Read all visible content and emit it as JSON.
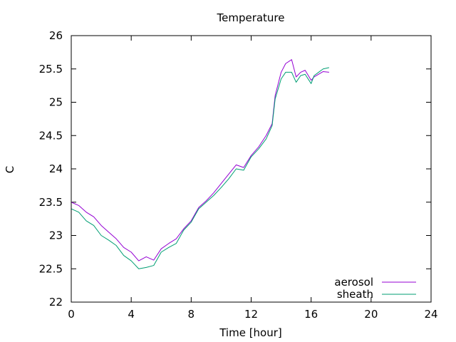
{
  "chart_data": {
    "type": "line",
    "title": "Temperature",
    "xlabel": "Time [hour]",
    "ylabel": "C",
    "xlim": [
      0,
      24
    ],
    "ylim": [
      22,
      26
    ],
    "xticks": [
      "0",
      "4",
      "8",
      "12",
      "16",
      "20",
      "24"
    ],
    "yticks": [
      "22",
      "22.5",
      "23",
      "23.5",
      "24",
      "24.5",
      "25",
      "25.5",
      "26"
    ],
    "grid": false,
    "legend_position": "bottom-right",
    "series": [
      {
        "name": "aerosol",
        "color": "#9400d3",
        "x": [
          0,
          0.5,
          1,
          1.5,
          2,
          2.5,
          3,
          3.5,
          4,
          4.5,
          5,
          5.5,
          6,
          6.5,
          7,
          7.5,
          8,
          8.5,
          9,
          9.5,
          10,
          10.5,
          11,
          11.5,
          12,
          12.5,
          13,
          13.4,
          13.6,
          14,
          14.3,
          14.7,
          15,
          15.3,
          15.6,
          16,
          16.2,
          16.5,
          16.8,
          17.2
        ],
        "y": [
          23.5,
          23.45,
          23.35,
          23.28,
          23.15,
          23.05,
          22.95,
          22.82,
          22.75,
          22.62,
          22.68,
          22.63,
          22.8,
          22.88,
          22.95,
          23.1,
          23.22,
          23.42,
          23.52,
          23.64,
          23.78,
          23.92,
          24.06,
          24.02,
          24.2,
          24.33,
          24.5,
          24.68,
          25.1,
          25.45,
          25.58,
          25.64,
          25.38,
          25.45,
          25.48,
          25.33,
          25.38,
          25.42,
          25.46,
          25.45
        ]
      },
      {
        "name": "sheath",
        "color": "#009e73",
        "x": [
          0,
          0.5,
          1,
          1.5,
          2,
          2.5,
          3,
          3.5,
          4,
          4.5,
          5,
          5.5,
          6,
          6.5,
          7,
          7.5,
          8,
          8.5,
          9,
          9.5,
          10,
          10.5,
          11,
          11.5,
          12,
          12.5,
          13,
          13.4,
          13.6,
          14,
          14.3,
          14.7,
          15,
          15.3,
          15.6,
          16,
          16.2,
          16.5,
          16.8,
          17.2
        ],
        "y": [
          23.4,
          23.35,
          23.22,
          23.15,
          23.0,
          22.93,
          22.85,
          22.7,
          22.62,
          22.5,
          22.52,
          22.55,
          22.75,
          22.82,
          22.88,
          23.08,
          23.2,
          23.4,
          23.5,
          23.6,
          23.72,
          23.85,
          24.0,
          23.98,
          24.18,
          24.3,
          24.45,
          24.65,
          25.05,
          25.35,
          25.45,
          25.45,
          25.3,
          25.4,
          25.42,
          25.28,
          25.4,
          25.45,
          25.5,
          25.52
        ]
      }
    ]
  }
}
